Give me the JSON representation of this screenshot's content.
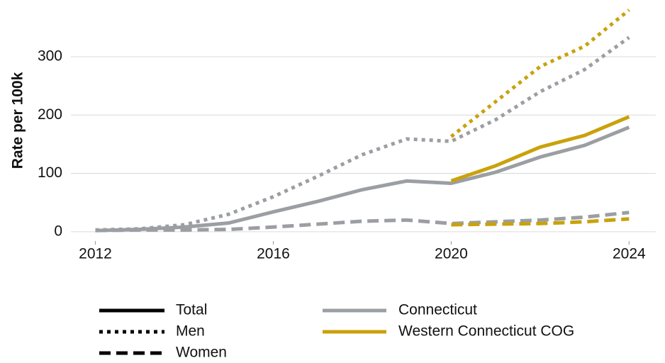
{
  "chart_data": {
    "type": "line",
    "y_label": "Rate per 100k",
    "x": [
      2012,
      2013,
      2014,
      2015,
      2016,
      2017,
      2018,
      2019,
      2020,
      2021,
      2022,
      2023,
      2024
    ],
    "xlim": [
      2011.45,
      2024.6
    ],
    "xticks": [
      2012,
      2016,
      2020,
      2024
    ],
    "ylim": [
      -16,
      385
    ],
    "yticks": [
      0,
      100,
      200,
      300
    ],
    "grid": true,
    "line_styles": [
      {
        "name": "Total",
        "dash": "solid"
      },
      {
        "name": "Men",
        "dash": "dotted"
      },
      {
        "name": "Women",
        "dash": "dashed"
      }
    ],
    "regions": [
      {
        "name": "Connecticut",
        "color": "#9b9ea3"
      },
      {
        "name": "Western Connecticut COG",
        "color": "#c9a20c"
      }
    ],
    "series": [
      {
        "region": "Connecticut",
        "style": "Total",
        "values": [
          2,
          4,
          8,
          15,
          34,
          52,
          72,
          87,
          83,
          102,
          128,
          148,
          179
        ]
      },
      {
        "region": "Connecticut",
        "style": "Men",
        "values": [
          3,
          5,
          12,
          30,
          60,
          95,
          132,
          159,
          155,
          192,
          240,
          278,
          333
        ]
      },
      {
        "region": "Connecticut",
        "style": "Women",
        "values": [
          2,
          3,
          3,
          4,
          8,
          13,
          18,
          20,
          14,
          17,
          20,
          25,
          33
        ]
      },
      {
        "region": "Western Connecticut COG",
        "style": "Total",
        "values": [
          null,
          null,
          null,
          null,
          null,
          null,
          null,
          null,
          87,
          113,
          145,
          165,
          197
        ]
      },
      {
        "region": "Western Connecticut COG",
        "style": "Men",
        "values": [
          null,
          null,
          null,
          null,
          null,
          null,
          null,
          null,
          163,
          223,
          283,
          318,
          380
        ]
      },
      {
        "region": "Western Connecticut COG",
        "style": "Women",
        "values": [
          null,
          null,
          null,
          null,
          null,
          null,
          null,
          null,
          12,
          13,
          14,
          17,
          22
        ]
      }
    ]
  }
}
